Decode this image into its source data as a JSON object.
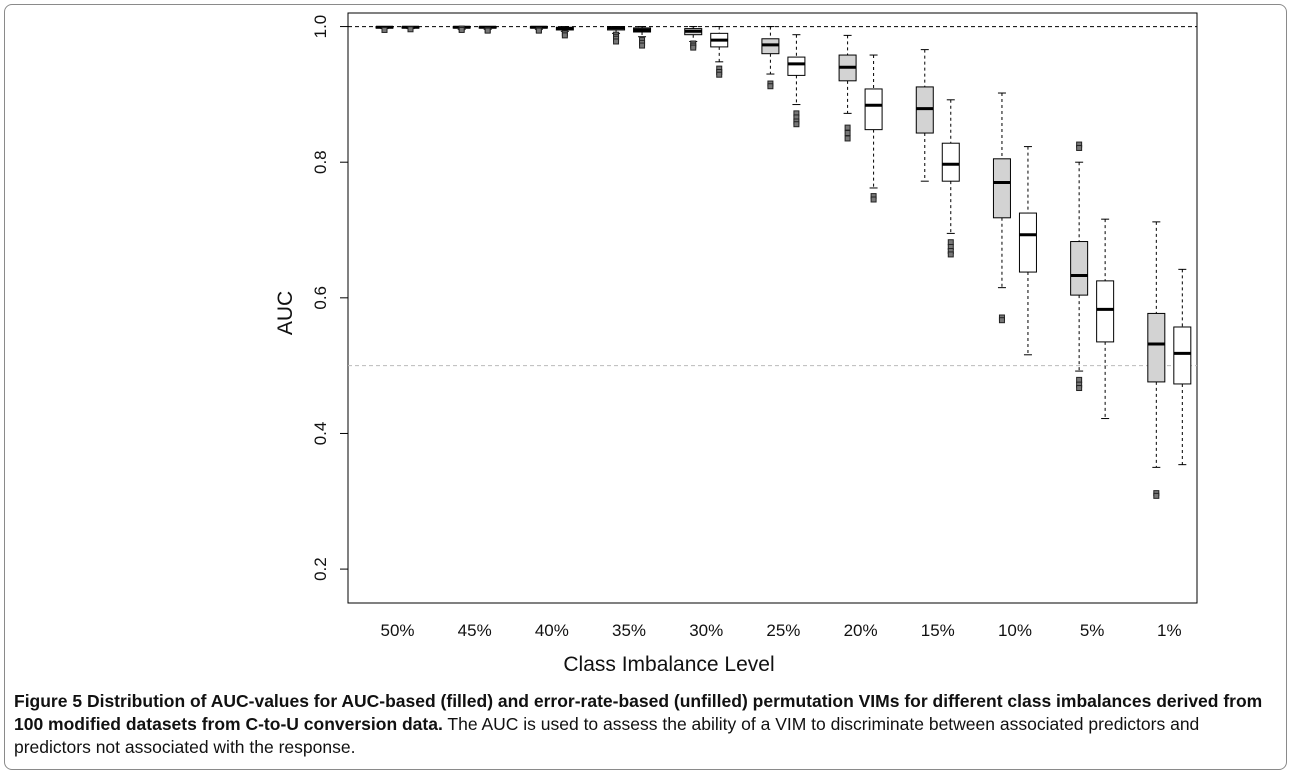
{
  "chart_data": {
    "type": "boxplot",
    "title": "",
    "xlabel": "Class Imbalance Level",
    "ylabel": "AUC",
    "ylim": [
      0.15,
      1.02
    ],
    "yticks": [
      0.2,
      0.4,
      0.6,
      0.8,
      1.0
    ],
    "ytick_labels": [
      "0.2",
      "0.4",
      "0.6",
      "0.8",
      "1.0"
    ],
    "categories": [
      "50%",
      "45%",
      "40%",
      "35%",
      "30%",
      "25%",
      "20%",
      "15%",
      "10%",
      "5%",
      "1%"
    ],
    "reference_lines": [
      {
        "y": 1.0,
        "style": "dashed",
        "color": "#000000"
      },
      {
        "y": 0.5,
        "style": "dashed",
        "color": "#bbbbbb"
      }
    ],
    "series": [
      {
        "fill": "#d3d3d3",
        "boxes": [
          {
            "min": 0.997,
            "q1": 0.998,
            "median": 0.999,
            "q3": 1.0,
            "max": 1.0,
            "outliers": [
              0.995
            ]
          },
          {
            "min": 0.996,
            "q1": 0.998,
            "median": 0.999,
            "q3": 1.0,
            "max": 1.0,
            "outliers": [
              0.997,
              0.995
            ]
          },
          {
            "min": 0.996,
            "q1": 0.998,
            "median": 0.999,
            "q3": 1.0,
            "max": 1.0,
            "outliers": [
              0.995,
              0.994
            ]
          },
          {
            "min": 0.99,
            "q1": 0.995,
            "median": 0.998,
            "q3": 1.0,
            "max": 1.0,
            "outliers": [
              0.988,
              0.985,
              0.982,
              0.978
            ]
          },
          {
            "min": 0.978,
            "q1": 0.988,
            "median": 0.993,
            "q3": 0.997,
            "max": 1.0,
            "outliers": [
              0.975,
              0.972,
              0.969
            ]
          },
          {
            "min": 0.93,
            "q1": 0.96,
            "median": 0.973,
            "q3": 0.982,
            "max": 1.0,
            "outliers": [
              0.916,
              0.912
            ]
          },
          {
            "min": 0.872,
            "q1": 0.92,
            "median": 0.94,
            "q3": 0.958,
            "max": 0.987,
            "outliers": [
              0.851,
              0.843,
              0.835
            ]
          },
          {
            "min": 0.772,
            "q1": 0.843,
            "median": 0.879,
            "q3": 0.911,
            "max": 0.966,
            "outliers": []
          },
          {
            "min": 0.615,
            "q1": 0.718,
            "median": 0.77,
            "q3": 0.805,
            "max": 0.902,
            "outliers": [
              0.571,
              0.567
            ]
          },
          {
            "min": 0.492,
            "q1": 0.604,
            "median": 0.633,
            "q3": 0.683,
            "max": 0.8,
            "outliers": [
              0.826,
              0.821,
              0.479,
              0.472,
              0.467
            ]
          },
          {
            "min": 0.35,
            "q1": 0.476,
            "median": 0.532,
            "q3": 0.577,
            "max": 0.712,
            "outliers": [
              0.312,
              0.308
            ]
          }
        ]
      },
      {
        "fill": "#ffffff",
        "boxes": [
          {
            "min": 0.997,
            "q1": 0.998,
            "median": 0.999,
            "q3": 1.0,
            "max": 1.0,
            "outliers": [
              0.996
            ]
          },
          {
            "min": 0.996,
            "q1": 0.998,
            "median": 0.999,
            "q3": 1.0,
            "max": 1.0,
            "outliers": [
              0.995,
              0.994
            ]
          },
          {
            "min": 0.993,
            "q1": 0.995,
            "median": 0.997,
            "q3": 0.999,
            "max": 1.0,
            "outliers": [
              0.99,
              0.987
            ]
          },
          {
            "min": 0.985,
            "q1": 0.992,
            "median": 0.995,
            "q3": 0.998,
            "max": 1.0,
            "outliers": [
              0.98,
              0.976,
              0.972
            ]
          },
          {
            "min": 0.948,
            "q1": 0.97,
            "median": 0.98,
            "q3": 0.99,
            "max": 1.0,
            "outliers": [
              0.938,
              0.933,
              0.929
            ]
          },
          {
            "min": 0.885,
            "q1": 0.928,
            "median": 0.945,
            "q3": 0.955,
            "max": 0.988,
            "outliers": [
              0.872,
              0.866,
              0.86,
              0.856
            ]
          },
          {
            "min": 0.762,
            "q1": 0.848,
            "median": 0.884,
            "q3": 0.908,
            "max": 0.958,
            "outliers": [
              0.75,
              0.745
            ]
          },
          {
            "min": 0.695,
            "q1": 0.772,
            "median": 0.797,
            "q3": 0.828,
            "max": 0.892,
            "outliers": [
              0.682,
              0.675,
              0.669,
              0.664
            ]
          },
          {
            "min": 0.516,
            "q1": 0.638,
            "median": 0.693,
            "q3": 0.725,
            "max": 0.823,
            "outliers": []
          },
          {
            "min": 0.422,
            "q1": 0.535,
            "median": 0.583,
            "q3": 0.625,
            "max": 0.716,
            "outliers": []
          },
          {
            "min": 0.354,
            "q1": 0.473,
            "median": 0.518,
            "q3": 0.557,
            "max": 0.642,
            "outliers": []
          }
        ]
      }
    ]
  },
  "caption": {
    "label": "Figure 5",
    "bold_text": "Distribution of AUC-values for AUC-based (filled) and error-rate-based (unfilled) permutation VIMs for different class imbalances derived from 100 modified datasets from C-to-U conversion data.",
    "text": "The AUC is used to assess the ability of a VIM to discriminate between associated predictors and predictors not associated with the response."
  }
}
